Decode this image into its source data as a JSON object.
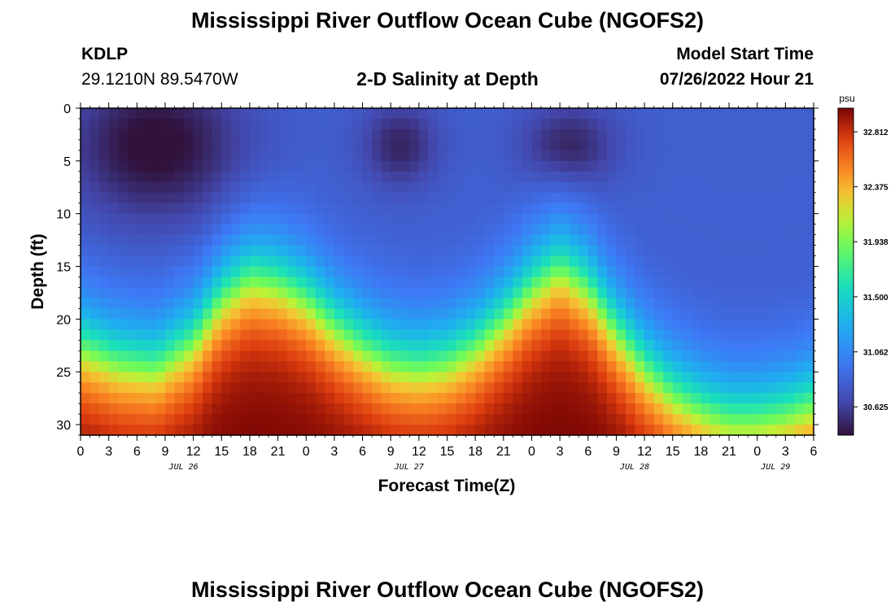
{
  "page": {
    "title_top": "Mississippi River Outflow Ocean Cube (NGOFS2)",
    "title_bottom": "Mississippi River Outflow Ocean Cube (NGOFS2)"
  },
  "header": {
    "station_id": "KDLP",
    "station_coords": "29.1210N  89.5470W",
    "plot_title": "2-D Salinity at Depth",
    "model_start_label": "Model Start Time",
    "model_start_value": "07/26/2022 Hour 21"
  },
  "chart_data": {
    "type": "heatmap",
    "title": "2-D Salinity at Depth",
    "xlabel": "Forecast Time(Z)",
    "ylabel": "Depth (ft)",
    "x_unit": "hours since 07/26/2022 00Z",
    "x_range": [
      0,
      78
    ],
    "x_ticks": [
      0,
      3,
      6,
      9,
      12,
      15,
      18,
      21,
      24,
      27,
      30,
      33,
      36,
      39,
      42,
      45,
      48,
      51,
      54,
      57,
      60,
      63,
      66,
      69,
      72,
      75,
      78
    ],
    "x_tick_labels": [
      "0",
      "3",
      "6",
      "9",
      "12",
      "15",
      "18",
      "21",
      "0",
      "3",
      "6",
      "9",
      "12",
      "15",
      "18",
      "21",
      "0",
      "3",
      "6",
      "9",
      "12",
      "15",
      "18",
      "21",
      "0",
      "3",
      "6"
    ],
    "date_labels": [
      {
        "text": "JUL 26",
        "hour": 12
      },
      {
        "text": "JUL 27",
        "hour": 36
      },
      {
        "text": "JUL 28",
        "hour": 60
      },
      {
        "text": "JUL 29",
        "hour": 75
      }
    ],
    "y_range": [
      0,
      31
    ],
    "y_inverted": true,
    "y_ticks": [
      0,
      5,
      10,
      15,
      20,
      25,
      30
    ],
    "y_tick_labels": [
      "0",
      "5",
      "10",
      "15",
      "20",
      "25",
      "30"
    ],
    "colorbar": {
      "unit": "psu",
      "range": [
        30.4,
        33.0
      ],
      "ticks": [
        30.625,
        31.062,
        31.5,
        31.938,
        32.375,
        32.812
      ],
      "tick_labels": [
        "30.625",
        "31.062",
        "31.500",
        "31.938",
        "32.375",
        "32.812"
      ],
      "colormap": "turbo"
    },
    "grid": false,
    "interface_depth_ft": [
      {
        "hour": 0,
        "depth": 22.5
      },
      {
        "hour": 4,
        "depth": 24
      },
      {
        "hour": 8,
        "depth": 24.5
      },
      {
        "hour": 12,
        "depth": 22
      },
      {
        "hour": 15,
        "depth": 18
      },
      {
        "hour": 18,
        "depth": 16
      },
      {
        "hour": 21,
        "depth": 16.5
      },
      {
        "hour": 24,
        "depth": 18
      },
      {
        "hour": 27,
        "depth": 20.5
      },
      {
        "hour": 30,
        "depth": 22.5
      },
      {
        "hour": 33,
        "depth": 24
      },
      {
        "hour": 36,
        "depth": 24.5
      },
      {
        "hour": 39,
        "depth": 24
      },
      {
        "hour": 42,
        "depth": 22.5
      },
      {
        "hour": 45,
        "depth": 20
      },
      {
        "hour": 48,
        "depth": 17
      },
      {
        "hour": 51,
        "depth": 15
      },
      {
        "hour": 54,
        "depth": 17
      },
      {
        "hour": 57,
        "depth": 21
      },
      {
        "hour": 60,
        "depth": 24.5
      },
      {
        "hour": 63,
        "depth": 27
      },
      {
        "hour": 66,
        "depth": 28.5
      },
      {
        "hour": 69,
        "depth": 29.5
      },
      {
        "hour": 72,
        "depth": 29.5
      },
      {
        "hour": 75,
        "depth": 29
      },
      {
        "hour": 78,
        "depth": 28
      }
    ],
    "surface_fresh_cores": [
      {
        "hour": 8,
        "depth": 3.5,
        "depth_extent": 7,
        "hour_extent": 9,
        "min_salinity": 30.4
      },
      {
        "hour": 34,
        "depth": 3.5,
        "depth_extent": 4,
        "hour_extent": 4,
        "min_salinity": 30.5
      },
      {
        "hour": 52,
        "depth": 3.5,
        "depth_extent": 4,
        "hour_extent": 5,
        "min_salinity": 30.5
      }
    ],
    "background_salinity": 30.75,
    "bottom_salinity_max": 33.0
  }
}
